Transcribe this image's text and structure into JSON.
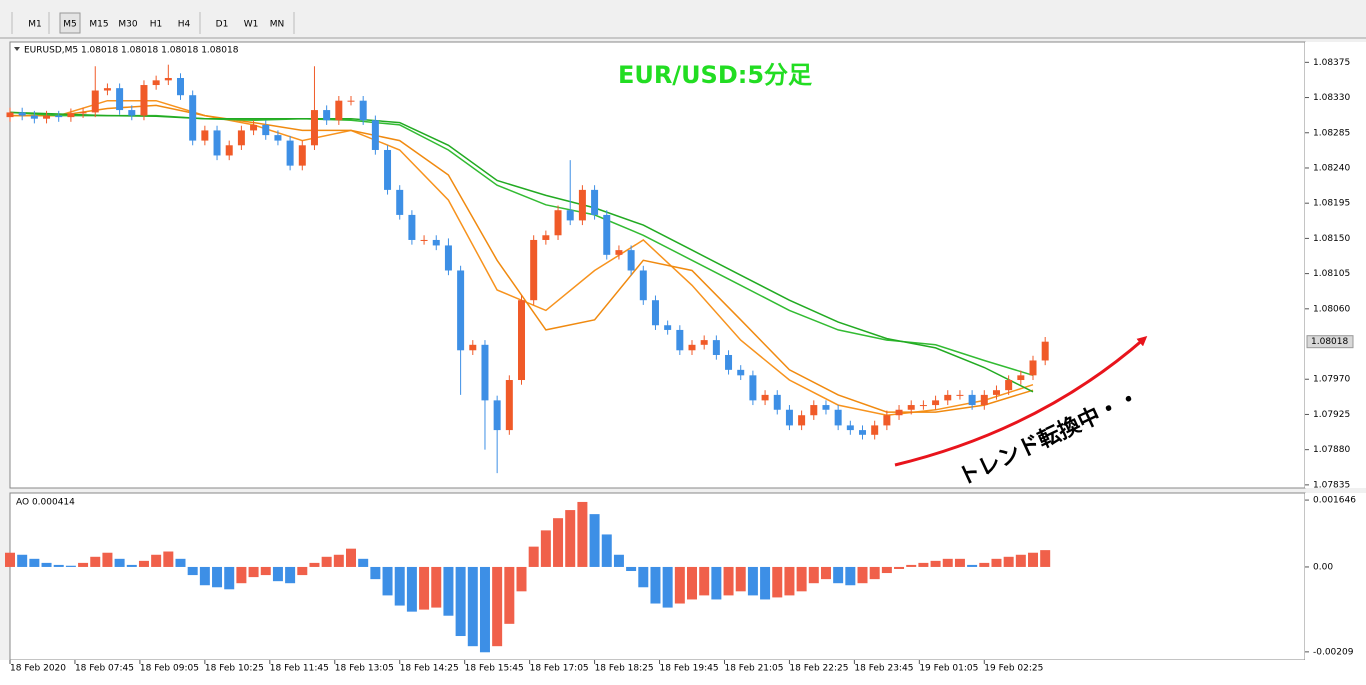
{
  "toolbar": {
    "buttons": [
      "M1",
      "M5",
      "M15",
      "M30",
      "H1",
      "H4",
      "D1",
      "W1",
      "MN"
    ]
  },
  "chart_data": [
    {
      "type": "candlestick",
      "symbol_label": "EURUSD,M5  1.08018 1.08018 1.08018 1.08018",
      "title": "EUR/USD:5分足",
      "annotation": "トレンド転換中・・",
      "current_price": 1.08018,
      "colors": {
        "up": "#f05a28",
        "down": "#3d8fe5"
      },
      "xlim": [
        0,
        319
      ],
      "ylim": [
        1.07831,
        1.08401
      ],
      "yticks": [
        1.08375,
        {
          "value": 1.0833,
          "label": "1.08330"
        },
        1.08285,
        {
          "value": 1.0824,
          "label": "1.08240"
        },
        1.08195,
        {
          "value": 1.0815,
          "label": "1.08150"
        },
        1.08105,
        {
          "value": 1.0806,
          "label": "1.08060"
        },
        {
          "value": 1.0797,
          "label": "1.07970"
        },
        1.07925,
        {
          "value": 1.0788,
          "label": "1.07880"
        },
        1.07835
      ],
      "x": [
        0,
        3,
        6,
        9,
        12,
        15,
        18,
        21,
        24,
        27,
        30,
        33,
        36,
        39,
        42,
        45,
        48,
        51,
        54,
        57,
        60,
        63,
        66,
        69,
        72,
        75,
        78,
        81,
        84,
        87,
        90,
        93,
        96,
        99,
        102,
        105,
        108,
        111,
        114,
        117,
        120,
        123,
        126,
        129,
        132,
        135,
        138,
        141,
        144,
        147,
        150,
        153,
        156,
        159,
        162,
        165,
        168,
        171,
        174,
        177,
        180,
        183,
        186,
        189,
        192,
        195,
        198,
        201,
        204,
        207,
        210,
        213,
        216,
        219,
        222,
        225,
        228,
        231,
        234,
        237,
        240,
        243,
        246,
        249,
        252,
        255
      ],
      "open": [
        1.08305,
        1.08311,
        1.08307,
        1.08303,
        1.08307,
        1.08305,
        1.0831,
        1.08311,
        1.08339,
        1.08342,
        1.08314,
        1.08307,
        1.08346,
        1.08352,
        1.08355,
        1.08333,
        1.08275,
        1.08288,
        1.08256,
        1.08269,
        1.08288,
        1.08295,
        1.08282,
        1.08275,
        1.08243,
        1.08269,
        1.08314,
        1.08301,
        1.08326,
        1.08326,
        1.08301,
        1.08263,
        1.08212,
        1.0818,
        1.08148,
        1.08148,
        1.08141,
        1.08109,
        1.08007,
        1.08014,
        1.07943,
        1.07905,
        1.07969,
        1.08071,
        1.08148,
        1.08154,
        1.08186,
        1.08173,
        1.08212,
        1.0818,
        1.08129,
        1.08135,
        1.08109,
        1.08071,
        1.08039,
        1.08033,
        1.08007,
        1.08014,
        1.0802,
        1.08001,
        1.07982,
        1.07975,
        1.07943,
        1.0795,
        1.07931,
        1.07911,
        1.07924,
        1.07937,
        1.07931,
        1.07911,
        1.07905,
        1.07899,
        1.07911,
        1.07924,
        1.07931,
        1.07937,
        1.07937,
        1.07943,
        1.0795,
        1.0795,
        1.07937,
        1.0795,
        1.07956,
        1.07969,
        1.07975,
        1.07994
      ],
      "high": [
        1.08317,
        1.08317,
        1.08313,
        1.08313,
        1.08313,
        1.08316,
        1.08317,
        1.0837,
        1.08348,
        1.08348,
        1.0832,
        1.08352,
        1.08358,
        1.08372,
        1.08361,
        1.08339,
        1.08294,
        1.08294,
        1.08275,
        1.08294,
        1.08301,
        1.08301,
        1.08288,
        1.08281,
        1.08275,
        1.0837,
        1.0832,
        1.08332,
        1.08332,
        1.08332,
        1.08307,
        1.08269,
        1.08218,
        1.08186,
        1.08154,
        1.08154,
        1.0815,
        1.08115,
        1.0802,
        1.0802,
        1.07949,
        1.07975,
        1.08077,
        1.08154,
        1.0816,
        1.08192,
        1.0825,
        1.08218,
        1.08218,
        1.08186,
        1.08141,
        1.08141,
        1.08115,
        1.08077,
        1.08045,
        1.08039,
        1.0802,
        1.08026,
        1.08026,
        1.08007,
        1.07988,
        1.07981,
        1.07956,
        1.07956,
        1.07937,
        1.0793,
        1.07943,
        1.07943,
        1.07937,
        1.07917,
        1.07911,
        1.07917,
        1.0793,
        1.07937,
        1.07943,
        1.07943,
        1.07949,
        1.07956,
        1.07956,
        1.07956,
        1.07956,
        1.07962,
        1.07975,
        1.07981,
        1.08,
        1.08024
      ],
      "low": [
        1.08299,
        1.08301,
        1.08297,
        1.08297,
        1.08299,
        1.08299,
        1.08304,
        1.08305,
        1.08333,
        1.08308,
        1.08301,
        1.08301,
        1.0834,
        1.08346,
        1.08327,
        1.08269,
        1.08269,
        1.0825,
        1.0825,
        1.08263,
        1.08282,
        1.08276,
        1.08269,
        1.08237,
        1.08237,
        1.08263,
        1.08295,
        1.08295,
        1.0832,
        1.08295,
        1.08257,
        1.08206,
        1.08174,
        1.08142,
        1.08142,
        1.08135,
        1.08103,
        1.0795,
        1.08001,
        1.0788,
        1.0785,
        1.07899,
        1.07963,
        1.08065,
        1.08142,
        1.08148,
        1.08167,
        1.08167,
        1.08174,
        1.08123,
        1.08123,
        1.08103,
        1.08065,
        1.08033,
        1.08027,
        1.08001,
        1.08001,
        1.08008,
        1.07995,
        1.07976,
        1.07969,
        1.07937,
        1.07937,
        1.07925,
        1.07905,
        1.07905,
        1.07918,
        1.07925,
        1.07905,
        1.07899,
        1.07893,
        1.07893,
        1.07905,
        1.07918,
        1.07925,
        1.07931,
        1.07931,
        1.07937,
        1.07944,
        1.07931,
        1.07931,
        1.07944,
        1.0795,
        1.07963,
        1.07969,
        1.07988
      ],
      "close": [
        1.08311,
        1.08307,
        1.08303,
        1.08307,
        1.08305,
        1.0831,
        1.08311,
        1.08339,
        1.08342,
        1.08314,
        1.08307,
        1.08346,
        1.08352,
        1.08355,
        1.08333,
        1.08275,
        1.08288,
        1.08256,
        1.08269,
        1.08288,
        1.08295,
        1.08282,
        1.08275,
        1.08243,
        1.08269,
        1.08314,
        1.08301,
        1.08326,
        1.08326,
        1.08301,
        1.08263,
        1.08212,
        1.0818,
        1.08148,
        1.08148,
        1.08141,
        1.08109,
        1.08007,
        1.08014,
        1.07943,
        1.07905,
        1.07969,
        1.08071,
        1.08148,
        1.08154,
        1.08186,
        1.08173,
        1.08212,
        1.0818,
        1.08129,
        1.08135,
        1.08109,
        1.08071,
        1.08039,
        1.08033,
        1.08007,
        1.08014,
        1.0802,
        1.08001,
        1.07982,
        1.07975,
        1.07943,
        1.0795,
        1.07931,
        1.07911,
        1.07924,
        1.07937,
        1.07931,
        1.07911,
        1.07905,
        1.07899,
        1.07911,
        1.07924,
        1.07931,
        1.07937,
        1.07937,
        1.07943,
        1.0795,
        1.0795,
        1.07937,
        1.0795,
        1.07956,
        1.07969,
        1.07975,
        1.07994,
        1.08018
      ],
      "lines_x": [
        0,
        12,
        24,
        36,
        48,
        60,
        72,
        84,
        96,
        108,
        120,
        132,
        144,
        156,
        168,
        180,
        192,
        204,
        216,
        228,
        240,
        252
      ],
      "lines": [
        {
          "color": "#f7931e",
          "values": [
            1.08307,
            1.08307,
            1.08326,
            1.08326,
            1.08307,
            1.08295,
            1.08275,
            1.08288,
            1.08263,
            1.08199,
            1.08084,
            1.08058,
            1.08109,
            1.08148,
            1.0809,
            1.0802,
            1.07969,
            1.07937,
            1.07924,
            1.07931,
            1.07943,
            1.07963
          ]
        },
        {
          "color": "#f08a10",
          "values": [
            1.08307,
            1.08307,
            1.08316,
            1.0832,
            1.08307,
            1.08298,
            1.08288,
            1.08288,
            1.08275,
            1.08231,
            1.08122,
            1.08033,
            1.08046,
            1.08122,
            1.08109,
            1.08046,
            1.07982,
            1.0795,
            1.07928,
            1.07928,
            1.07937,
            1.07956
          ]
        },
        {
          "color": "#33bb33",
          "values": [
            1.08311,
            1.08307,
            1.08307,
            1.08307,
            1.08303,
            1.08301,
            1.08303,
            1.08301,
            1.08295,
            1.08263,
            1.08218,
            1.08193,
            1.0818,
            1.08154,
            1.08122,
            1.0809,
            1.08058,
            1.08033,
            1.0802,
            1.08014,
            1.07994,
            1.07975
          ]
        },
        {
          "color": "#22aa22",
          "values": [
            1.08311,
            1.08309,
            1.08307,
            1.08306,
            1.08303,
            1.08303,
            1.08303,
            1.08303,
            1.08298,
            1.08269,
            1.08224,
            1.08205,
            1.08189,
            1.08167,
            1.08135,
            1.08103,
            1.08071,
            1.08043,
            1.08022,
            1.0801,
            1.07985,
            1.07954
          ]
        }
      ]
    },
    {
      "type": "bar",
      "label": "AO 0.000414",
      "colors": {
        "up": "#f0604a",
        "down": "#3d8fe6"
      },
      "xlim": [
        0,
        319
      ],
      "ylim": [
        -0.00229,
        0.00182
      ],
      "yticks": [
        0.001646,
        {
          "value": 0,
          "label": "0.00"
        },
        -0.00209
      ],
      "xticks": [
        {
          "value": 0,
          "label": "18 Feb 2020"
        },
        {
          "value": 16,
          "label": "18 Feb 07:45"
        },
        {
          "value": 32,
          "label": "18 Feb 09:05"
        },
        {
          "value": 48,
          "label": "18 Feb 10:25"
        },
        {
          "value": 64,
          "label": "18 Feb 11:45"
        },
        {
          "value": 80,
          "label": "18 Feb 13:05"
        },
        {
          "value": 96,
          "label": "18 Feb 14:25"
        },
        {
          "value": 112,
          "label": "18 Feb 15:45"
        },
        {
          "value": 128,
          "label": "18 Feb 17:05"
        },
        {
          "value": 144,
          "label": "18 Feb 18:25"
        },
        {
          "value": 160,
          "label": "18 Feb 19:45"
        },
        {
          "value": 176,
          "label": "18 Feb 21:05"
        },
        {
          "value": 192,
          "label": "18 Feb 22:25"
        },
        {
          "value": 208,
          "label": "18 Feb 23:45"
        },
        {
          "value": 224,
          "label": "19 Feb 01:05"
        },
        {
          "value": 240,
          "label": "19 Feb 02:25"
        }
      ],
      "x": [
        0,
        3,
        6,
        9,
        12,
        15,
        18,
        21,
        24,
        27,
        30,
        33,
        36,
        39,
        42,
        45,
        48,
        51,
        54,
        57,
        60,
        63,
        66,
        69,
        72,
        75,
        78,
        81,
        84,
        87,
        90,
        93,
        96,
        99,
        102,
        105,
        108,
        111,
        114,
        117,
        120,
        123,
        126,
        129,
        132,
        135,
        138,
        141,
        144,
        147,
        150,
        153,
        156,
        159,
        162,
        165,
        168,
        171,
        174,
        177,
        180,
        183,
        186,
        189,
        192,
        195,
        198,
        201,
        204,
        207,
        210,
        213,
        216,
        219,
        222,
        225,
        228,
        231,
        234,
        237,
        240,
        243,
        246,
        249,
        252,
        255
      ],
      "values": [
        0.00035,
        0.0003,
        0.0002,
        0.0001,
        5e-05,
        3e-05,
        0.0001,
        0.00025,
        0.00035,
        0.0002,
        5e-05,
        0.00015,
        0.0003,
        0.00038,
        0.0002,
        -0.0002,
        -0.00045,
        -0.0005,
        -0.00055,
        -0.0004,
        -0.00025,
        -0.0002,
        -0.00035,
        -0.0004,
        -0.0002,
        0.0001,
        0.00025,
        0.0003,
        0.00045,
        0.0002,
        -0.0003,
        -0.0007,
        -0.00095,
        -0.0011,
        -0.00105,
        -0.001,
        -0.0012,
        -0.0017,
        -0.00195,
        -0.0021,
        -0.00195,
        -0.0014,
        -0.0006,
        0.0005,
        0.0009,
        0.0012,
        0.0014,
        0.0016,
        0.0013,
        0.0008,
        0.0003,
        -0.0001,
        -0.0005,
        -0.0009,
        -0.001,
        -0.0009,
        -0.0008,
        -0.0007,
        -0.0008,
        -0.0007,
        -0.0006,
        -0.0007,
        -0.0008,
        -0.00075,
        -0.0007,
        -0.0006,
        -0.0004,
        -0.0003,
        -0.0004,
        -0.00045,
        -0.0004,
        -0.0003,
        -0.00015,
        -5e-05,
        5e-05,
        0.0001,
        0.00015,
        0.0002,
        0.0002,
        5e-05,
        0.0001,
        0.0002,
        0.00025,
        0.0003,
        0.00035,
        0.000414
      ]
    }
  ]
}
